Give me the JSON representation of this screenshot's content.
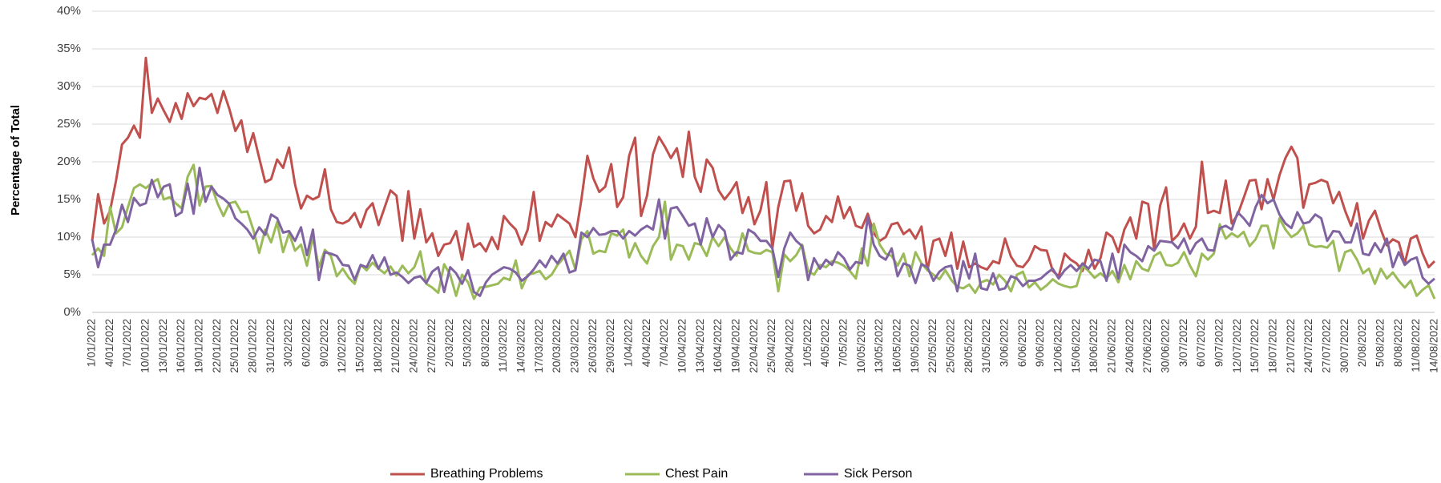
{
  "chart_data": {
    "type": "line",
    "y_label": "Percentage of Total",
    "ylim": [
      0,
      40
    ],
    "yticks": [
      {
        "value": 0,
        "label": "0%"
      },
      {
        "value": 5,
        "label": "5%"
      },
      {
        "value": 10,
        "label": "10%"
      },
      {
        "value": 15,
        "label": "15%"
      },
      {
        "value": 20,
        "label": "20%"
      },
      {
        "value": 25,
        "label": "25%"
      },
      {
        "value": 30,
        "label": "30%"
      },
      {
        "value": 35,
        "label": "35%"
      },
      {
        "value": 40,
        "label": "40%"
      }
    ],
    "grid": true,
    "legend": "bottom",
    "categories": [
      "1/01/2022",
      null,
      null,
      "4/01/2022",
      null,
      null,
      "7/01/2022",
      null,
      null,
      "10/01/2022",
      null,
      null,
      "13/01/2022",
      null,
      null,
      "16/01/2022",
      null,
      null,
      "19/01/2022",
      null,
      null,
      "22/01/2022",
      null,
      null,
      "25/01/2022",
      null,
      null,
      "28/01/2022",
      null,
      null,
      "31/01/2022",
      null,
      null,
      "3/02/2022",
      null,
      null,
      "6/02/2022",
      null,
      null,
      "9/02/2022",
      null,
      null,
      "12/02/2022",
      null,
      null,
      "15/02/2022",
      null,
      null,
      "18/02/2022",
      null,
      null,
      "21/02/2022",
      null,
      null,
      "24/02/2022",
      null,
      null,
      "27/02/2022",
      null,
      null,
      "2/03/2022",
      null,
      null,
      "5/03/2022",
      null,
      null,
      "8/03/2022",
      null,
      null,
      "11/03/2022",
      null,
      null,
      "14/03/2022",
      null,
      null,
      "17/03/2022",
      null,
      null,
      "20/03/2022",
      null,
      null,
      "23/03/2022",
      null,
      null,
      "26/03/2022",
      null,
      null,
      "29/03/2022",
      null,
      null,
      "1/04/2022",
      null,
      null,
      "4/04/2022",
      null,
      null,
      "7/04/2022",
      null,
      null,
      "10/04/2022",
      null,
      null,
      "13/04/2022",
      null,
      null,
      "16/04/2022",
      null,
      null,
      "19/04/2022",
      null,
      null,
      "22/04/2022",
      null,
      null,
      "25/04/2022",
      null,
      null,
      "28/04/2022",
      null,
      null,
      "1/05/2022",
      null,
      null,
      "4/05/2022",
      null,
      null,
      "7/05/2022",
      null,
      null,
      "10/05/2022",
      null,
      null,
      "13/05/2022",
      null,
      null,
      "16/05/2022",
      null,
      null,
      "19/05/2022",
      null,
      null,
      "22/05/2022",
      null,
      null,
      "25/05/2022",
      null,
      null,
      "28/05/2022",
      null,
      null,
      "31/05/2022",
      null,
      null,
      "3/06/2022",
      null,
      null,
      "6/06/2022",
      null,
      null,
      "9/06/2022",
      null,
      null,
      "12/06/2022",
      null,
      null,
      "15/06/2022",
      null,
      null,
      "18/06/2022",
      null,
      null,
      "21/06/2022",
      null,
      null,
      "24/06/2022",
      null,
      null,
      "27/06/2022",
      null,
      null,
      "30/06/2022",
      null,
      null,
      "3/07/2022",
      null,
      null,
      "6/07/2022",
      null,
      null,
      "9/07/2022",
      null,
      null,
      "12/07/2022",
      null,
      null,
      "15/07/2022",
      null,
      null,
      "18/07/2022",
      null,
      null,
      "21/07/2022",
      null,
      null,
      "24/07/2022",
      null,
      null,
      "27/07/2022",
      null,
      null,
      "30/07/2022",
      null,
      null,
      "2/08/2022",
      null,
      null,
      "5/08/2022",
      null,
      null,
      "8/08/2022",
      null,
      null,
      "11/08/2022",
      null,
      null,
      "14/08/2022"
    ],
    "series": [
      {
        "name": "Breathing Problems",
        "color": "#c0504d",
        "values": [
          9.5,
          15.7,
          11.8,
          13.5,
          17.5,
          22.3,
          23.2,
          24.8,
          23.2,
          33.8,
          26.5,
          28.4,
          26.8,
          25.3,
          27.8,
          25.7,
          29.1,
          27.4,
          28.5,
          28.3,
          29.0,
          26.5,
          29.4,
          27.0,
          24.1,
          25.5,
          21.3,
          23.8,
          20.5,
          17.3,
          17.7,
          20.3,
          19.2,
          21.9,
          17.0,
          13.8,
          15.5,
          15.0,
          15.4,
          19.0,
          13.7,
          12.0,
          11.8,
          12.2,
          13.2,
          11.3,
          13.6,
          14.5,
          11.6,
          13.9,
          16.2,
          15.5,
          9.5,
          16.1,
          9.8,
          13.7,
          9.3,
          10.5,
          7.5,
          9.0,
          9.2,
          10.8,
          7.0,
          11.8,
          8.7,
          9.2,
          8.1,
          10.0,
          8.4,
          12.8,
          11.8,
          11.0,
          9.0,
          11.0,
          16.0,
          9.5,
          12.0,
          11.4,
          13.0,
          12.4,
          11.8,
          10.0,
          15.0,
          20.8,
          17.8,
          16.0,
          16.7,
          19.7,
          14.0,
          15.3,
          20.8,
          23.2,
          12.8,
          15.5,
          21.0,
          23.3,
          22.0,
          20.5,
          21.8,
          18.0,
          24.0,
          18.0,
          16.0,
          20.3,
          19.2,
          16.2,
          15.0,
          16.0,
          17.3,
          13.2,
          15.3,
          11.7,
          13.5,
          17.3,
          8.5,
          14.0,
          17.4,
          17.5,
          13.5,
          15.8,
          11.5,
          10.5,
          11.0,
          12.8,
          12.0,
          15.4,
          12.5,
          14.0,
          11.5,
          11.2,
          13.1,
          10.5,
          9.5,
          10.0,
          11.7,
          11.9,
          10.4,
          11.0,
          9.8,
          11.4,
          5.6,
          9.5,
          9.8,
          7.5,
          10.6,
          5.8,
          9.4,
          6.0,
          6.5,
          6.0,
          5.7,
          6.8,
          6.5,
          9.8,
          7.4,
          6.2,
          6.0,
          7.0,
          8.8,
          8.3,
          8.2,
          5.5,
          4.8,
          7.8,
          7.0,
          6.5,
          5.5,
          8.3,
          5.8,
          7.2,
          10.6,
          10.0,
          8.0,
          11.0,
          12.6,
          9.8,
          14.7,
          14.4,
          8.4,
          14.2,
          16.6,
          9.5,
          10.3,
          11.8,
          9.8,
          11.4,
          20.0,
          13.2,
          13.5,
          13.2,
          17.5,
          11.8,
          13.0,
          15.2,
          17.5,
          17.6,
          13.7,
          17.7,
          15.0,
          18.2,
          20.5,
          22.0,
          20.5,
          13.9,
          17.0,
          17.2,
          17.6,
          17.3,
          14.5,
          16.0,
          13.5,
          11.5,
          14.5,
          9.8,
          12.2,
          13.5,
          11.0,
          8.9,
          9.7,
          9.3,
          6.5,
          9.8,
          10.2,
          7.8,
          6.0,
          6.8
        ]
      },
      {
        "name": "Chest Pain",
        "color": "#9bbb59",
        "values": [
          7.6,
          8.5,
          7.5,
          14.0,
          10.5,
          11.3,
          14.0,
          16.5,
          17.0,
          16.5,
          17.2,
          17.7,
          15.0,
          15.3,
          14.5,
          13.8,
          18.0,
          19.6,
          14.2,
          16.7,
          16.8,
          14.5,
          12.8,
          14.5,
          14.7,
          13.3,
          13.4,
          11.0,
          7.9,
          11.0,
          9.3,
          12.0,
          8.0,
          10.5,
          8.2,
          9.0,
          6.2,
          10.0,
          6.0,
          8.3,
          7.5,
          4.8,
          5.8,
          4.6,
          3.8,
          6.3,
          5.6,
          6.6,
          5.8,
          5.2,
          6.1,
          4.9,
          6.2,
          5.2,
          6.0,
          8.1,
          3.8,
          3.3,
          2.6,
          6.4,
          5.0,
          2.2,
          5.0,
          4.0,
          1.8,
          3.3,
          3.4,
          3.6,
          3.8,
          4.6,
          4.3,
          6.9,
          3.2,
          5.0,
          5.2,
          5.5,
          4.4,
          5.0,
          6.3,
          7.2,
          8.2,
          5.7,
          9.7,
          10.8,
          7.8,
          8.2,
          8.0,
          10.5,
          10.2,
          11.0,
          7.3,
          9.2,
          7.5,
          6.5,
          8.8,
          10.0,
          14.7,
          7.0,
          9.0,
          8.8,
          7.0,
          9.2,
          9.0,
          7.5,
          10.0,
          8.8,
          10.0,
          8.5,
          7.5,
          10.5,
          8.2,
          7.9,
          7.8,
          8.3,
          8.0,
          2.8,
          7.7,
          6.8,
          7.6,
          9.0,
          5.5,
          5.0,
          6.3,
          6.0,
          6.8,
          6.6,
          6.2,
          5.5,
          4.5,
          8.5,
          6.2,
          11.8,
          9.0,
          7.8,
          7.5,
          6.2,
          7.8,
          4.8,
          8.0,
          6.5,
          5.6,
          5.0,
          4.4,
          5.6,
          4.3,
          3.4,
          3.2,
          3.7,
          2.6,
          4.0,
          4.3,
          3.7,
          5.0,
          4.2,
          2.8,
          5.0,
          5.4,
          3.3,
          4.0,
          3.0,
          3.6,
          4.4,
          3.8,
          3.5,
          3.3,
          3.5,
          6.2,
          5.5,
          4.6,
          5.2,
          4.5,
          5.5,
          4.0,
          6.3,
          4.4,
          6.8,
          5.8,
          5.5,
          7.5,
          8.0,
          6.3,
          6.2,
          6.6,
          8.0,
          6.2,
          4.8,
          7.8,
          7.0,
          7.8,
          11.7,
          9.8,
          10.5,
          10.0,
          10.7,
          8.8,
          9.7,
          11.5,
          11.5,
          8.5,
          12.5,
          11.0,
          10.0,
          10.5,
          11.5,
          9.0,
          8.7,
          8.8,
          8.6,
          9.5,
          5.5,
          8.0,
          8.3,
          7.0,
          5.2,
          5.8,
          3.8,
          5.8,
          4.5,
          5.3,
          4.2,
          3.3,
          4.2,
          2.2,
          3.0,
          3.6,
          1.8
        ]
      },
      {
        "name": "Sick Person",
        "color": "#8064a2",
        "values": [
          9.7,
          6.0,
          9.0,
          9.0,
          11.0,
          14.3,
          12.0,
          15.2,
          14.2,
          14.5,
          17.6,
          15.3,
          16.7,
          17.0,
          12.8,
          13.3,
          17.1,
          13.1,
          19.2,
          14.7,
          16.7,
          15.6,
          15.1,
          14.4,
          12.5,
          11.8,
          11.0,
          9.8,
          11.3,
          10.3,
          13.0,
          12.5,
          10.6,
          10.8,
          9.5,
          11.3,
          7.6,
          11.0,
          4.3,
          8.0,
          7.8,
          7.5,
          6.3,
          6.2,
          4.3,
          6.3,
          6.0,
          7.6,
          5.8,
          7.3,
          5.0,
          5.3,
          4.7,
          3.9,
          4.6,
          4.8,
          3.9,
          5.4,
          6.0,
          2.7,
          6.0,
          5.2,
          3.8,
          5.6,
          2.7,
          2.2,
          4.0,
          5.0,
          5.5,
          6.0,
          5.8,
          5.3,
          4.2,
          4.8,
          5.7,
          6.9,
          6.0,
          7.5,
          6.5,
          7.8,
          5.3,
          5.6,
          10.6,
          10.0,
          11.2,
          10.3,
          10.4,
          10.8,
          10.8,
          9.8,
          10.8,
          10.2,
          11.0,
          11.5,
          11.0,
          15.0,
          9.8,
          13.8,
          14.0,
          12.8,
          11.5,
          11.8,
          9.0,
          12.5,
          10.0,
          11.6,
          10.8,
          7.0,
          8.0,
          7.8,
          11.0,
          10.5,
          9.5,
          9.5,
          8.5,
          4.7,
          8.5,
          10.6,
          9.5,
          8.8,
          4.3,
          7.2,
          5.8,
          7.0,
          6.3,
          8.0,
          7.2,
          5.7,
          6.7,
          6.5,
          12.7,
          9.0,
          7.5,
          7.0,
          8.5,
          4.8,
          6.5,
          6.2,
          3.9,
          6.4,
          6.0,
          4.2,
          5.4,
          6.0,
          6.2,
          2.8,
          6.8,
          4.5,
          7.8,
          3.2,
          3.0,
          5.2,
          3.0,
          3.2,
          4.8,
          4.5,
          3.5,
          4.2,
          4.2,
          4.5,
          5.2,
          5.8,
          4.5,
          5.6,
          6.3,
          5.5,
          6.5,
          5.8,
          7.0,
          6.8,
          4.2,
          7.8,
          4.5,
          9.0,
          8.0,
          7.5,
          6.8,
          8.8,
          8.2,
          9.5,
          9.4,
          9.3,
          8.5,
          9.8,
          7.8,
          9.2,
          9.8,
          8.3,
          8.2,
          11.2,
          11.5,
          11.0,
          13.3,
          12.5,
          11.5,
          14.0,
          15.6,
          14.5,
          15.0,
          13.0,
          11.8,
          11.2,
          13.3,
          11.8,
          12.0,
          13.0,
          12.5,
          9.5,
          10.8,
          10.7,
          9.3,
          9.3,
          11.8,
          7.8,
          7.6,
          9.2,
          8.0,
          9.8,
          6.0,
          8.0,
          6.3,
          7.0,
          7.3,
          4.6,
          3.8,
          4.5
        ]
      }
    ]
  }
}
